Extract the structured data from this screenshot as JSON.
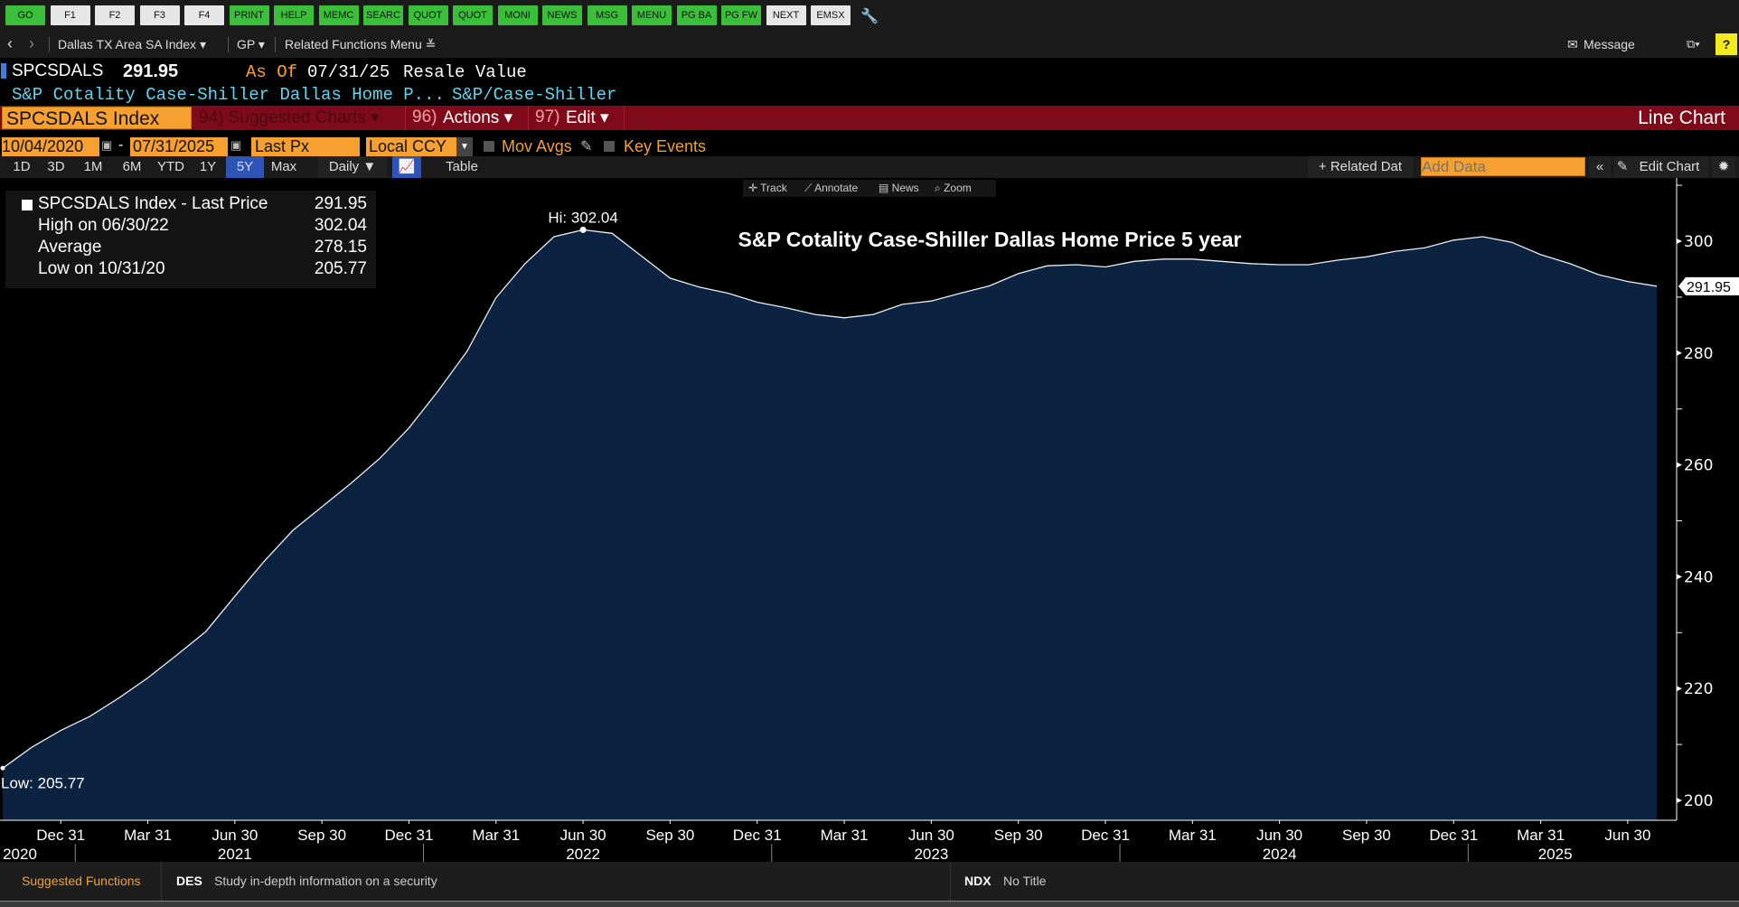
{
  "toolbar": {
    "buttons": [
      {
        "label": "GO",
        "style": "g"
      },
      {
        "label": "F1",
        "style": "w"
      },
      {
        "label": "F2",
        "style": "w"
      },
      {
        "label": "F3",
        "style": "w"
      },
      {
        "label": "F4",
        "style": "w"
      },
      {
        "label": "PRINT",
        "style": "g"
      },
      {
        "label": "HELP",
        "style": "g"
      },
      {
        "label": "MEMC",
        "style": "g"
      },
      {
        "label": "SEARC",
        "style": "g"
      },
      {
        "label": "QUOT",
        "style": "g"
      },
      {
        "label": "QUOT",
        "style": "g"
      },
      {
        "label": "MONI",
        "style": "g"
      },
      {
        "label": "NEWS",
        "style": "g"
      },
      {
        "label": "MSG",
        "style": "g"
      },
      {
        "label": "MENU",
        "style": "g"
      },
      {
        "label": "PG BA",
        "style": "g"
      },
      {
        "label": "PG FW",
        "style": "g"
      },
      {
        "label": "NEXT",
        "style": "w"
      },
      {
        "label": "EMSX",
        "style": "w"
      }
    ]
  },
  "nav": {
    "security": "Dallas TX Area SA Index ▾",
    "function": "GP ▾",
    "related": "Related Functions Menu ≚",
    "message": "Message",
    "help": "?"
  },
  "quote": {
    "ticker": "SPCSDALS",
    "price": "291.95",
    "as_of_label": "As Of",
    "as_of_date": "07/31/25",
    "type": "Resale Value",
    "description": "S&P Cotality Case-Shiller Dallas Home P...",
    "source": "S&P/Case-Shiller"
  },
  "redbar": {
    "security": "SPCSDALS Index",
    "suggested": "94) Suggested Charts ▾",
    "actions_num": "96)",
    "actions": "Actions ▾",
    "edit_num": "97)",
    "edit": "Edit ▾",
    "chart_type": "Line Chart"
  },
  "controls": {
    "start_date": "10/04/2020",
    "end_date": "07/31/2025",
    "field": "Last Px",
    "currency": "Local CCY",
    "mov_avgs": "Mov Avgs",
    "key_events": "Key Events"
  },
  "range": {
    "buttons": [
      "1D",
      "3D",
      "1M",
      "6M",
      "YTD",
      "1Y",
      "5Y",
      "Max"
    ],
    "active": "5Y",
    "frequency": "Daily ▼",
    "table": "Table",
    "related_data": "+ Related Dat",
    "add_data_placeholder": "Add Data",
    "edit_chart": "Edit Chart"
  },
  "chart_tools": [
    "Track",
    "Annotate",
    "News",
    "Zoom"
  ],
  "legend": {
    "title": "SPCSDALS Index - Last Price",
    "last": "291.95",
    "high_label": "High on 06/30/22",
    "high": "302.04",
    "avg_label": "Average",
    "avg": "278.15",
    "low_label": "Low on 10/31/20",
    "low": "205.77"
  },
  "chart_data": {
    "type": "area",
    "title": "S&P Cotality Case-Shiller Dallas Home Price 5 year",
    "xlabel": "",
    "ylabel": "",
    "ylim": [
      200,
      310
    ],
    "yticks": [
      200,
      220,
      240,
      260,
      280,
      300
    ],
    "last_value_label": "291.95",
    "hi_label": "Hi: 302.04",
    "low_label": "Low: 205.77",
    "x_start": "2020-10",
    "x_end": "2025-07",
    "values": [
      205.77,
      209.5,
      212.5,
      215.0,
      218.3,
      221.9,
      226.0,
      230.2,
      236.5,
      242.7,
      248.3,
      252.5,
      256.7,
      261.2,
      266.6,
      273.2,
      280.3,
      289.9,
      296.0,
      300.8,
      302.04,
      301.4,
      297.4,
      293.4,
      291.8,
      290.7,
      289.1,
      288.1,
      286.9,
      286.3,
      286.9,
      288.7,
      289.3,
      290.7,
      292.0,
      294.2,
      295.6,
      295.8,
      295.4,
      296.4,
      296.8,
      296.8,
      296.4,
      296.0,
      295.8,
      295.8,
      296.6,
      297.2,
      298.2,
      298.8,
      300.2,
      300.8,
      299.8,
      297.6,
      296.0,
      294.0,
      292.8,
      291.95
    ],
    "xticks": [
      {
        "label": "Dec 31",
        "i": 2
      },
      {
        "label": "Mar 31",
        "i": 5
      },
      {
        "label": "Jun 30",
        "i": 8
      },
      {
        "label": "Sep 30",
        "i": 11
      },
      {
        "label": "Dec 31",
        "i": 14
      },
      {
        "label": "Mar 31",
        "i": 17
      },
      {
        "label": "Jun 30",
        "i": 20
      },
      {
        "label": "Sep 30",
        "i": 23
      },
      {
        "label": "Dec 31",
        "i": 26
      },
      {
        "label": "Mar 31",
        "i": 29
      },
      {
        "label": "Jun 30",
        "i": 32
      },
      {
        "label": "Sep 30",
        "i": 35
      },
      {
        "label": "Dec 31",
        "i": 38
      },
      {
        "label": "Mar 31",
        "i": 41
      },
      {
        "label": "Jun 30",
        "i": 44
      },
      {
        "label": "Sep 30",
        "i": 47
      },
      {
        "label": "Dec 31",
        "i": 50
      },
      {
        "label": "Mar 31",
        "i": 53
      },
      {
        "label": "Jun 30",
        "i": 56
      }
    ],
    "years": [
      {
        "label": "2020",
        "i": 0.5
      },
      {
        "label": "2021",
        "i": 8
      },
      {
        "label": "2022",
        "i": 20
      },
      {
        "label": "2023",
        "i": 32
      },
      {
        "label": "2024",
        "i": 44
      },
      {
        "label": "2025",
        "i": 53.5
      }
    ],
    "year_separators": [
      2.5,
      14.5,
      26.5,
      38.5,
      50.5
    ],
    "colors": {
      "line": "#e8eef5",
      "fill": "#0b2340"
    }
  },
  "bottom": {
    "suggested": "Suggested Functions",
    "des_code": "DES",
    "des_text": "Study in-depth information on a security",
    "ndx_code": "NDX",
    "ndx_text": "No Title"
  }
}
